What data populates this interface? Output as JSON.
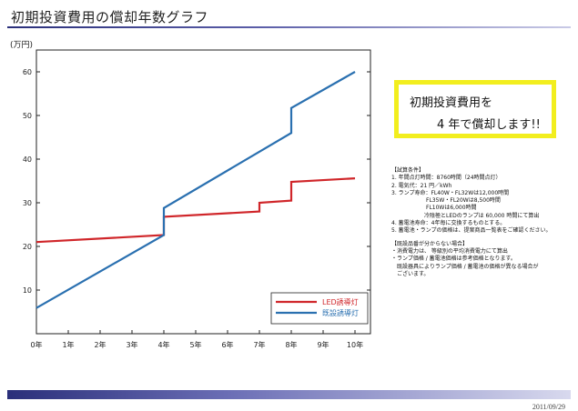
{
  "header": {
    "title": "初期投資費用の償却年数グラフ"
  },
  "footer": {
    "date": "2011/09/29"
  },
  "callout": {
    "line1": "初期投資費用を",
    "line2": "4 年で償却します!!"
  },
  "notes": {
    "section1_title": "【試算条件】",
    "section1_lines": [
      "1. 年間点灯時間：8760時間（24時間点灯）",
      "2. 電気代：21 円／kWh",
      "3. ランプ寿命：FL40W・FL32Wは12,000時間",
      "FL35W・FL20Wは8,500時間",
      "FL10Wは6,000時間",
      "冷陰極とLEDのランプは 60,000 時間にて算出",
      "4. 蓄電池寿命：4年毎に交換するものとする。",
      "5. 蓄電池・ランプの価格は、提案商品一覧表をご確認ください。"
    ],
    "section2_title": "【既設品番が分からない場合】",
    "section2_lines": [
      "・消費電力は、 等級別の平均消費電力にて算出",
      "・ランプ価格 / 蓄電池価格は参考価格となります。",
      "既設器具によりランプ価格 / 蓄電池の価格が異なる場合が",
      "ございます。"
    ]
  },
  "chart_data": {
    "type": "line",
    "unit_label": "(万円)",
    "x_categories": [
      "0年",
      "1年",
      "2年",
      "3年",
      "4年",
      "5年",
      "6年",
      "7年",
      "8年",
      "9年",
      "10年"
    ],
    "ylim": [
      0,
      65
    ],
    "y_ticks": [
      10,
      20,
      30,
      40,
      50,
      60
    ],
    "grid": false,
    "legend_position": "bottom-right",
    "series": [
      {
        "name": "LED誘導灯",
        "color": "#d0262a",
        "points": [
          [
            0,
            21
          ],
          [
            4,
            22.6
          ],
          [
            4,
            26.8
          ],
          [
            7,
            28
          ],
          [
            7,
            30
          ],
          [
            8,
            30.5
          ],
          [
            8,
            34.8
          ],
          [
            10,
            35.6
          ]
        ]
      },
      {
        "name": "既設誘導灯",
        "color": "#2a70b0",
        "points": [
          [
            0,
            5.9
          ],
          [
            4,
            22.6
          ],
          [
            4,
            28.8
          ],
          [
            8,
            46
          ],
          [
            8,
            51.7
          ],
          [
            10,
            60
          ]
        ]
      }
    ]
  }
}
